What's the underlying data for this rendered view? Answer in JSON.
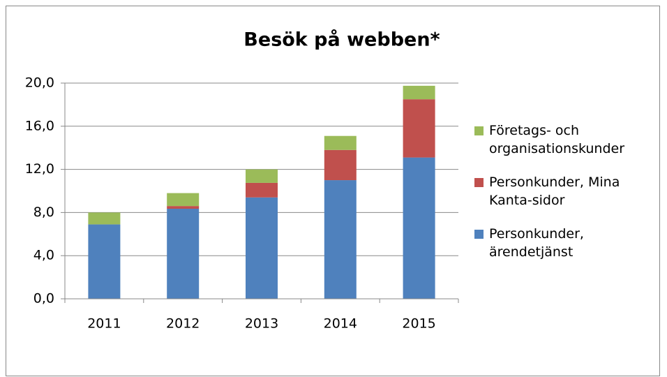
{
  "chart_data": {
    "type": "stacked-bar",
    "title": "Besök på webben*",
    "categories": [
      "2011",
      "2012",
      "2013",
      "2014",
      "2015"
    ],
    "series": [
      {
        "name": "Personkunder, ärendetjänst",
        "color": "#4f81bd",
        "values": [
          6.9,
          8.35,
          9.4,
          11.0,
          13.1
        ]
      },
      {
        "name": "Personkunder, Mina Kanta-sidor",
        "color": "#c0504d",
        "values": [
          0,
          0.25,
          1.35,
          2.8,
          5.4
        ]
      },
      {
        "name": "Företags- och organisationskunder",
        "color": "#9bbb59",
        "values": [
          1.1,
          1.2,
          1.25,
          1.3,
          1.25
        ]
      }
    ],
    "ylim": [
      0,
      20
    ],
    "yticks": [
      {
        "value": 0,
        "label": "0,0"
      },
      {
        "value": 4,
        "label": "4,0"
      },
      {
        "value": 8,
        "label": "8,0"
      },
      {
        "value": 12,
        "label": "12,0"
      },
      {
        "value": 16,
        "label": "16,0"
      },
      {
        "value": 20,
        "label": "20,0"
      }
    ],
    "grid": true,
    "legend": "right"
  }
}
